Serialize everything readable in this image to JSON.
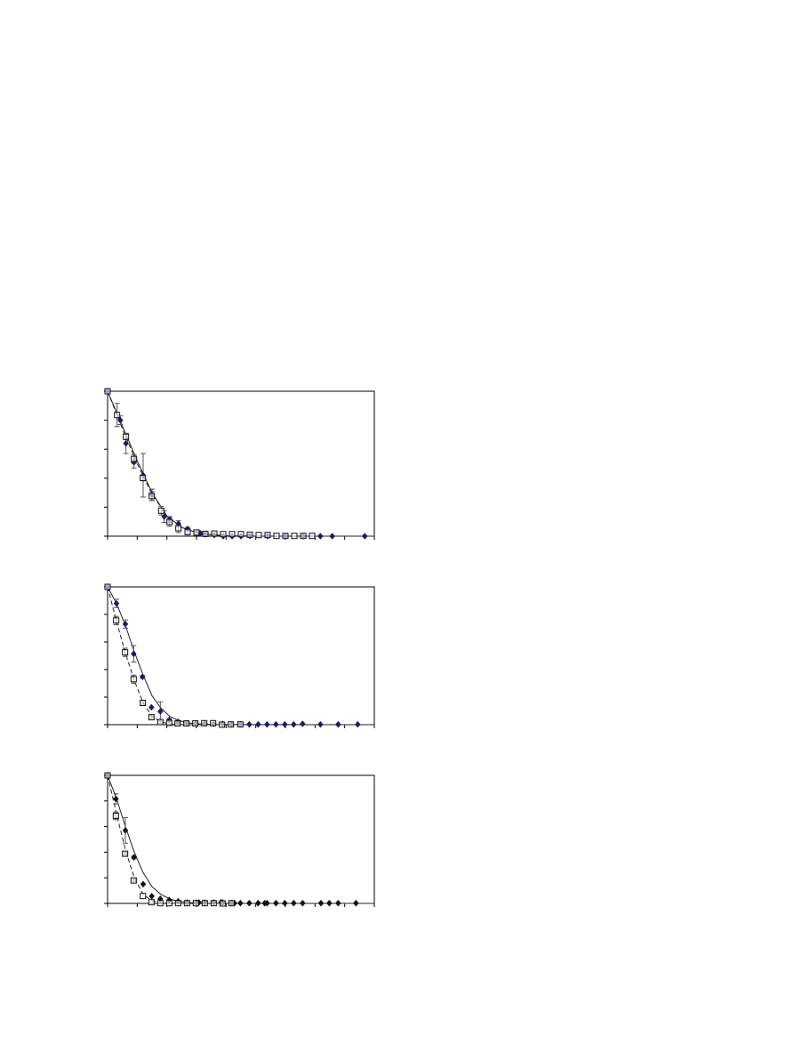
{
  "colors": {
    "diamond_navy": "#1b1b6b",
    "diamond_black": "#111111",
    "square_stroke": "#111111",
    "fit_line": "#222222",
    "axis": "#000000",
    "error_bar": "#555555"
  },
  "chart_data": [
    {
      "type": "scatter",
      "title": "",
      "xlabel": "",
      "ylabel": "",
      "xlim": [
        0,
        90
      ],
      "ylim": [
        0,
        100
      ],
      "x_ticks": 9,
      "y_ticks": 5,
      "grid": false,
      "legend": "none",
      "series": [
        {
          "marker": "diamond",
          "color": "#1b1b6b",
          "x": [
            0,
            4.3,
            6.2,
            8.9,
            12,
            15,
            19.1,
            20.9,
            23.9,
            27,
            31.3,
            33,
            36,
            39,
            42,
            45,
            48,
            54,
            60,
            66,
            71.8,
            75.8,
            86.8
          ],
          "y": [
            100,
            80,
            64,
            51,
            42,
            28.5,
            13.5,
            11.5,
            8.6,
            5,
            2,
            1.2,
            0.8,
            0,
            0,
            0,
            0.2,
            0,
            0,
            0,
            0,
            0,
            0
          ],
          "err": [
            0,
            3,
            7,
            4,
            15,
            4,
            4,
            2,
            2,
            1,
            1,
            0,
            0,
            0,
            0,
            0,
            0,
            0,
            0,
            0,
            0,
            0,
            0
          ]
        },
        {
          "marker": "square",
          "color": "#111111",
          "x": [
            0,
            3.2,
            6.2,
            8.9,
            11.9,
            14.9,
            18.1,
            20.9,
            23.9,
            27,
            30,
            33,
            36,
            39,
            42,
            45,
            48,
            51,
            54,
            57,
            60,
            63,
            66,
            69
          ],
          "y": [
            100,
            83.6,
            68.6,
            53.3,
            40.2,
            27.7,
            17.6,
            9.8,
            5.5,
            2.9,
            2.5,
            1.6,
            1.8,
            1.4,
            1.4,
            1.4,
            1,
            0.8,
            0.8,
            0.2,
            0.2,
            0.2,
            0.2,
            0.2
          ],
          "err": [
            0,
            8,
            2,
            3,
            2,
            3,
            3,
            3,
            3,
            2,
            1,
            1,
            0,
            0,
            0,
            0,
            0,
            0,
            0,
            0,
            0,
            0,
            0,
            0
          ]
        }
      ],
      "fits": [
        {
          "style": "solid",
          "x": [
            0,
            5,
            10,
            15,
            20,
            25,
            30,
            35,
            40,
            50,
            90
          ],
          "y": [
            100,
            76,
            52,
            30,
            14,
            6,
            2.5,
            1,
            0.3,
            0,
            0
          ]
        },
        {
          "style": "dashed",
          "x": [
            0,
            5,
            10,
            15,
            20,
            25,
            30,
            35,
            40,
            50,
            90
          ],
          "y": [
            100,
            74,
            50,
            29,
            14,
            6,
            2.5,
            1,
            0.3,
            0,
            0
          ]
        }
      ]
    },
    {
      "type": "scatter",
      "title": "",
      "xlabel": "",
      "ylabel": "",
      "xlim": [
        0,
        90
      ],
      "ylim": [
        0,
        100
      ],
      "x_ticks": 9,
      "y_ticks": 5,
      "grid": false,
      "legend": "none",
      "series": [
        {
          "marker": "diamond",
          "color": "#1b1b6b",
          "x": [
            0,
            3,
            6,
            8.8,
            11.8,
            14.8,
            17.8,
            20.8,
            23.8,
            26.8,
            29.8,
            32.8,
            35.8,
            38.8,
            41.8,
            44.8,
            47.8,
            50.8,
            53.8,
            56.8,
            59.8,
            62.8,
            65.8,
            71.8,
            77.8,
            84.4
          ],
          "y": [
            100,
            88,
            73,
            51.4,
            34.7,
            12.6,
            9.6,
            3.4,
            2.1,
            1,
            0.9,
            0.9,
            0.6,
            0.6,
            0.2,
            0.2,
            0.2,
            0.2,
            0.2,
            0.2,
            0.2,
            0.2,
            0.6,
            0.2,
            0.2,
            0.2
          ],
          "err": [
            0,
            3,
            3,
            6,
            1,
            0,
            7,
            1,
            1,
            0,
            0,
            0,
            0,
            0,
            0,
            0,
            0,
            0,
            0,
            0,
            0,
            0,
            0,
            0,
            0,
            0
          ]
        },
        {
          "marker": "square",
          "color": "#111111",
          "x": [
            0,
            2.9,
            5.9,
            8.8,
            11.9,
            14.8,
            17.8,
            20.8,
            23.6,
            26.6,
            29.6,
            32.6,
            35.6,
            38.6,
            41.6,
            44.8
          ],
          "y": [
            100,
            75.6,
            52.5,
            33,
            15.8,
            5.4,
            1.9,
            1.3,
            0.9,
            0.9,
            0.9,
            1.1,
            1.1,
            0,
            0.2,
            0.2
          ],
          "err": [
            0,
            3,
            3,
            3,
            1,
            1,
            1,
            0,
            0,
            0,
            0,
            0,
            0,
            0,
            0,
            0
          ]
        }
      ],
      "fits": [
        {
          "style": "solid",
          "x": [
            0,
            3,
            6,
            9,
            12,
            15,
            18,
            21,
            24,
            27,
            30,
            35,
            90
          ],
          "y": [
            100,
            88,
            72,
            53,
            36,
            21,
            12,
            6,
            3,
            1.5,
            0.6,
            0.1,
            0
          ]
        },
        {
          "style": "dashed",
          "x": [
            0,
            3,
            6,
            9,
            12,
            15,
            18,
            21,
            25,
            90
          ],
          "y": [
            100,
            75,
            52,
            32,
            16,
            6,
            2,
            0.5,
            0,
            0
          ]
        }
      ]
    },
    {
      "type": "scatter",
      "title": "",
      "xlabel": "",
      "ylabel": "",
      "xlim": [
        0,
        90
      ],
      "ylim": [
        0,
        100
      ],
      "x_ticks": 9,
      "y_ticks": 5,
      "grid": false,
      "legend": "none",
      "series": [
        {
          "marker": "diamond",
          "color": "#111111",
          "x": [
            0,
            2.8,
            6,
            8.9,
            12,
            14.9,
            17.8,
            20.8,
            23.8,
            26.8,
            30,
            30.8,
            32.8,
            35.8,
            38.3,
            38.8,
            41.8,
            42.8,
            44.8,
            47.8,
            50.8,
            53,
            53.8,
            56.8,
            59.8,
            62.8,
            65.8,
            72,
            74.8,
            77.8,
            83.8
          ],
          "y": [
            100,
            81.6,
            57,
            36,
            15,
            5.6,
            3.5,
            2.6,
            1.6,
            0.7,
            0.7,
            0.7,
            0.7,
            0.7,
            0.9,
            0.7,
            0.2,
            0.2,
            0.2,
            0.2,
            0.2,
            0.2,
            0.2,
            0.2,
            0.2,
            0.2,
            0.2,
            0.2,
            0.2,
            0.2,
            0.2
          ],
          "err": [
            0,
            4,
            10,
            1,
            0,
            0,
            0,
            0,
            0,
            0,
            0,
            0,
            0,
            0,
            0,
            0,
            0,
            0,
            0,
            0,
            0,
            0,
            0,
            0,
            0,
            0,
            0,
            0,
            0,
            0,
            0
          ]
        },
        {
          "marker": "square",
          "color": "#111111",
          "x": [
            0,
            2.8,
            5.9,
            8.8,
            11.9,
            14.8,
            17.8,
            20.8,
            23.8,
            26.8,
            29.8,
            32.8,
            35.8,
            38.8,
            41.8
          ],
          "y": [
            100,
            68.4,
            38.8,
            17.9,
            5.8,
            0.9,
            0.2,
            0.2,
            0.2,
            0.2,
            0.2,
            0.2,
            0.2,
            0,
            0.2
          ],
          "err": [
            0,
            3,
            1,
            1,
            0,
            0,
            0,
            0,
            0,
            0,
            0,
            0,
            0,
            0,
            0
          ]
        }
      ],
      "fits": [
        {
          "style": "solid",
          "x": [
            0,
            3,
            6,
            9,
            12,
            15,
            18,
            21,
            24,
            27,
            30,
            35,
            90
          ],
          "y": [
            100,
            82,
            60,
            40,
            24,
            13,
            7,
            3.5,
            1.7,
            0.7,
            0.3,
            0,
            0
          ]
        },
        {
          "style": "dashed",
          "x": [
            0,
            3,
            6,
            9,
            12,
            15,
            18,
            21,
            90
          ],
          "y": [
            100,
            70,
            42,
            20,
            7,
            2,
            0.5,
            0,
            0
          ]
        }
      ]
    }
  ]
}
